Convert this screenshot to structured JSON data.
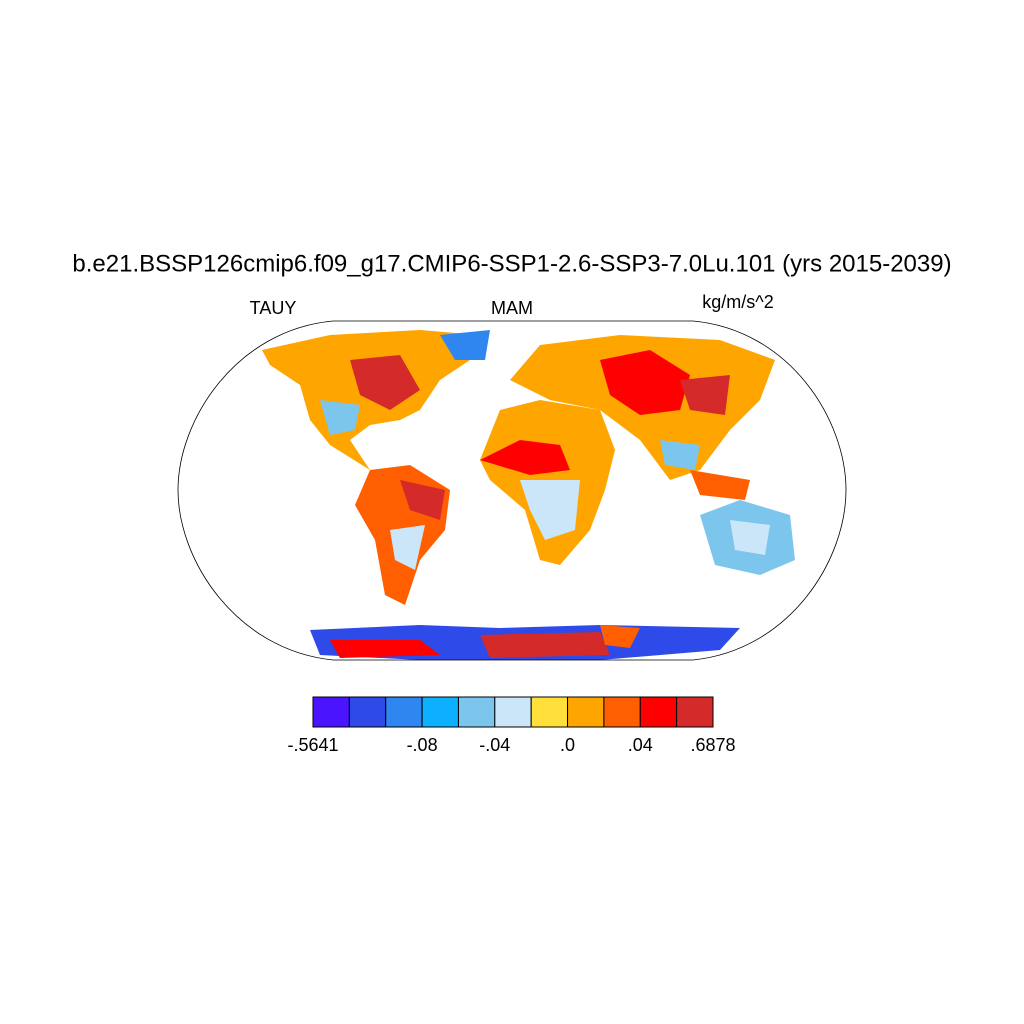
{
  "title": "b.e21.BSSP126cmip6.f09_g17.CMIP6-SSP1-2.6-SSP3-7.0Lu.101 (yrs 2015-2039)",
  "left_label": "TAUY",
  "center_label": "MAM",
  "right_label": "kg/m/s^2",
  "colorbar": {
    "colors": [
      "#4a14ff",
      "#2e4ae8",
      "#2f86f0",
      "#0cb0ff",
      "#7cc6ee",
      "#cbe6f8",
      "#ffdf3a",
      "#ffa500",
      "#ff5f00",
      "#ff0000",
      "#d42a2a"
    ],
    "levels": [
      {
        "value": -0.5641,
        "label": "-.5641"
      },
      null,
      null,
      {
        "value": -0.08,
        "label": "-.08"
      },
      null,
      {
        "value": -0.04,
        "label": "-.04"
      },
      null,
      {
        "value": 0,
        "label": ".0"
      },
      null,
      {
        "value": 0.04,
        "label": ".04"
      },
      null,
      {
        "value": 0.6878,
        "label": ".6878"
      }
    ]
  }
}
